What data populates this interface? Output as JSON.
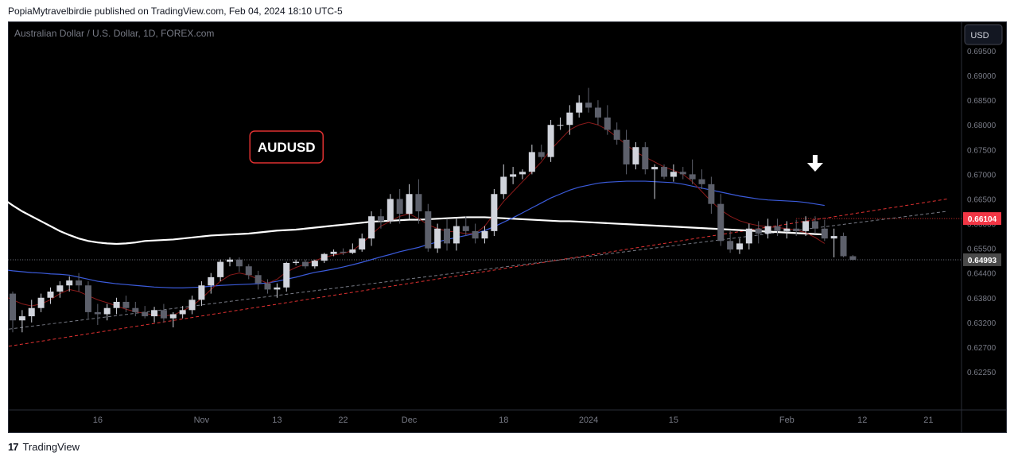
{
  "header": {
    "publisher": "PopiaMytravelbirdie published on TradingView.com, Feb 04, 2024 18:10 UTC-5"
  },
  "footer": {
    "brand": "TradingView",
    "logo_glyph": "17"
  },
  "chart_data": {
    "type": "candlestick",
    "title": "Australian Dollar / U.S. Dollar, 1D, FOREX.com",
    "annotation": "AUDUSD",
    "currency_button": "USD",
    "y_ticks": [
      "0.69500",
      "0.69000",
      "0.68500",
      "0.68000",
      "0.67500",
      "0.67000",
      "0.66500",
      "0.66000",
      "0.65500",
      "0.64400",
      "0.63800",
      "0.63200",
      "0.62700",
      "0.62250"
    ],
    "y_tick_values": [
      0.695,
      0.69,
      0.685,
      0.68,
      0.675,
      0.67,
      0.665,
      0.66,
      0.655,
      0.644,
      0.638,
      0.632,
      0.627,
      0.6225
    ],
    "x_ticks": [
      "16",
      "Nov",
      "13",
      "22",
      "Dec",
      "18",
      "2024",
      "15",
      "Feb",
      "12",
      "21"
    ],
    "x_tick_index": [
      9,
      20,
      28,
      35,
      42,
      52,
      61,
      70,
      82,
      90,
      97
    ],
    "price_labels": [
      {
        "text": "0.66104",
        "value": 0.66104,
        "color": "#f23645"
      },
      {
        "text": "0.64993",
        "value": 0.64993,
        "color": "#4a4a4a"
      }
    ],
    "candles": [
      [
        0.639,
        0.6395,
        0.63,
        0.6325
      ],
      [
        0.6325,
        0.635,
        0.63,
        0.6335
      ],
      [
        0.6335,
        0.6375,
        0.632,
        0.6355
      ],
      [
        0.6355,
        0.639,
        0.6345,
        0.638
      ],
      [
        0.638,
        0.6405,
        0.6365,
        0.6395
      ],
      [
        0.6395,
        0.642,
        0.638,
        0.641
      ],
      [
        0.641,
        0.6432,
        0.6395,
        0.6422
      ],
      [
        0.6422,
        0.644,
        0.6395,
        0.641
      ],
      [
        0.641,
        0.642,
        0.633,
        0.6345
      ],
      [
        0.6345,
        0.6365,
        0.6315,
        0.634
      ],
      [
        0.634,
        0.6365,
        0.6325,
        0.6355
      ],
      [
        0.6355,
        0.638,
        0.634,
        0.637
      ],
      [
        0.637,
        0.6385,
        0.6345,
        0.6355
      ],
      [
        0.6355,
        0.637,
        0.6335,
        0.6345
      ],
      [
        0.6345,
        0.636,
        0.633,
        0.6335
      ],
      [
        0.6335,
        0.6358,
        0.632,
        0.635
      ],
      [
        0.635,
        0.6365,
        0.632,
        0.633
      ],
      [
        0.633,
        0.6345,
        0.631,
        0.634
      ],
      [
        0.634,
        0.636,
        0.633,
        0.635
      ],
      [
        0.635,
        0.6385,
        0.634,
        0.6375
      ],
      [
        0.6375,
        0.642,
        0.636,
        0.641
      ],
      [
        0.641,
        0.644,
        0.639,
        0.643
      ],
      [
        0.643,
        0.65,
        0.642,
        0.649
      ],
      [
        0.649,
        0.651,
        0.647,
        0.65
      ],
      [
        0.65,
        0.651,
        0.6445,
        0.647
      ],
      [
        0.647,
        0.648,
        0.6425,
        0.6435
      ],
      [
        0.6435,
        0.645,
        0.64,
        0.6415
      ],
      [
        0.6415,
        0.6425,
        0.639,
        0.64
      ],
      [
        0.64,
        0.6415,
        0.638,
        0.6405
      ],
      [
        0.6405,
        0.649,
        0.6395,
        0.6485
      ],
      [
        0.6485,
        0.65,
        0.6475,
        0.649
      ],
      [
        0.649,
        0.65,
        0.646,
        0.647
      ],
      [
        0.647,
        0.65,
        0.646,
        0.6495
      ],
      [
        0.6495,
        0.653,
        0.6485,
        0.6525
      ],
      [
        0.6525,
        0.6545,
        0.6515,
        0.6535
      ],
      [
        0.6535,
        0.655,
        0.652,
        0.653
      ],
      [
        0.653,
        0.656,
        0.6525,
        0.6545
      ],
      [
        0.6545,
        0.658,
        0.6535,
        0.657
      ],
      [
        0.657,
        0.6625,
        0.6555,
        0.6615
      ],
      [
        0.6615,
        0.663,
        0.659,
        0.6605
      ],
      [
        0.6605,
        0.666,
        0.66,
        0.665
      ],
      [
        0.665,
        0.667,
        0.66,
        0.662
      ],
      [
        0.662,
        0.668,
        0.661,
        0.666
      ],
      [
        0.666,
        0.669,
        0.66,
        0.6625
      ],
      [
        0.6625,
        0.664,
        0.6535,
        0.655
      ],
      [
        0.655,
        0.66,
        0.653,
        0.659
      ],
      [
        0.659,
        0.661,
        0.654,
        0.656
      ],
      [
        0.656,
        0.661,
        0.654,
        0.6595
      ],
      [
        0.6595,
        0.6615,
        0.6575,
        0.6585
      ],
      [
        0.6585,
        0.66,
        0.656,
        0.657
      ],
      [
        0.657,
        0.6595,
        0.656,
        0.6585
      ],
      [
        0.6585,
        0.667,
        0.6575,
        0.666
      ],
      [
        0.666,
        0.672,
        0.665,
        0.6695
      ],
      [
        0.6695,
        0.6715,
        0.668,
        0.67
      ],
      [
        0.67,
        0.671,
        0.669,
        0.6705
      ],
      [
        0.6705,
        0.676,
        0.67,
        0.6745
      ],
      [
        0.6745,
        0.676,
        0.673,
        0.6735
      ],
      [
        0.6735,
        0.681,
        0.6725,
        0.68
      ],
      [
        0.68,
        0.6815,
        0.679,
        0.68
      ],
      [
        0.68,
        0.684,
        0.678,
        0.6825
      ],
      [
        0.6825,
        0.686,
        0.6815,
        0.6845
      ],
      [
        0.6845,
        0.6875,
        0.6825,
        0.6835
      ],
      [
        0.6835,
        0.685,
        0.68,
        0.6815
      ],
      [
        0.6815,
        0.684,
        0.678,
        0.679
      ],
      [
        0.679,
        0.6805,
        0.676,
        0.677
      ],
      [
        0.677,
        0.679,
        0.67,
        0.672
      ],
      [
        0.672,
        0.6765,
        0.671,
        0.6755
      ],
      [
        0.6755,
        0.6765,
        0.67,
        0.671
      ],
      [
        0.671,
        0.672,
        0.665,
        0.6715
      ],
      [
        0.6715,
        0.672,
        0.669,
        0.6695
      ],
      [
        0.6695,
        0.672,
        0.6685,
        0.6705
      ],
      [
        0.6705,
        0.6715,
        0.669,
        0.67
      ],
      [
        0.67,
        0.673,
        0.668,
        0.669
      ],
      [
        0.669,
        0.671,
        0.667,
        0.668
      ],
      [
        0.668,
        0.6695,
        0.662,
        0.664
      ],
      [
        0.664,
        0.666,
        0.6555,
        0.6565
      ],
      [
        0.6565,
        0.6585,
        0.653,
        0.6545
      ],
      [
        0.6545,
        0.657,
        0.6525,
        0.656
      ],
      [
        0.656,
        0.66,
        0.6545,
        0.659
      ],
      [
        0.659,
        0.6605,
        0.656,
        0.658
      ],
      [
        0.658,
        0.661,
        0.657,
        0.6595
      ],
      [
        0.6595,
        0.661,
        0.6575,
        0.6585
      ],
      [
        0.6585,
        0.6605,
        0.657,
        0.659
      ],
      [
        0.659,
        0.6608,
        0.6575,
        0.6585
      ],
      [
        0.6585,
        0.6615,
        0.6575,
        0.6605
      ],
      [
        0.6605,
        0.6615,
        0.658,
        0.659
      ],
      [
        0.659,
        0.6608,
        0.6565,
        0.657
      ],
      [
        0.657,
        0.659,
        0.651,
        0.6575
      ],
      [
        0.6575,
        0.6582,
        0.651,
        0.6515
      ],
      [
        0.6515,
        0.652,
        0.6495,
        0.6499
      ]
    ],
    "series": [
      {
        "name": "",
        "color": "#ffffff",
        "width": 2.2,
        "values": [
          0.665,
          0.6637,
          0.6625,
          0.6615,
          0.6605,
          0.6595,
          0.6585,
          0.6577,
          0.657,
          0.6565,
          0.6562,
          0.656,
          0.6559,
          0.656,
          0.6562,
          0.6565,
          0.6566,
          0.6567,
          0.6568,
          0.657,
          0.6572,
          0.6574,
          0.6576,
          0.6577,
          0.6578,
          0.6579,
          0.658,
          0.6582,
          0.6584,
          0.6586,
          0.6587,
          0.6588,
          0.659,
          0.6592,
          0.6594,
          0.6596,
          0.6598,
          0.66,
          0.6602,
          0.6604,
          0.6605,
          0.6606,
          0.6607,
          0.6608,
          0.6608,
          0.6609,
          0.661,
          0.6611,
          0.6612,
          0.6613,
          0.6613,
          0.6613,
          0.6612,
          0.6611,
          0.661,
          0.6609,
          0.6608,
          0.6607,
          0.6606,
          0.6605,
          0.6605,
          0.6604,
          0.6603,
          0.6602,
          0.6601,
          0.66,
          0.6599,
          0.6598,
          0.6597,
          0.6596,
          0.6595,
          0.6594,
          0.6593,
          0.6592,
          0.6591,
          0.659,
          0.6589,
          0.6588,
          0.6587,
          0.6586,
          0.6585,
          0.6584,
          0.6583,
          0.6582,
          0.6581,
          0.658,
          0.6579,
          0.6578
        ]
      },
      {
        "name": "",
        "color": "#3b5bdb",
        "width": 1.2,
        "values": [
          0.6455,
          0.645,
          0.6446,
          0.6442,
          0.644,
          0.6438,
          0.6437,
          0.6435,
          0.643,
          0.6425,
          0.642,
          0.6417,
          0.6414,
          0.6412,
          0.641,
          0.6408,
          0.6406,
          0.6405,
          0.6404,
          0.6404,
          0.6405,
          0.6406,
          0.6408,
          0.641,
          0.6411,
          0.6412,
          0.6413,
          0.6414,
          0.6416,
          0.642,
          0.6425,
          0.643,
          0.6436,
          0.6443,
          0.645,
          0.6458,
          0.6467,
          0.6477,
          0.6488,
          0.65,
          0.6512,
          0.6523,
          0.6535,
          0.6545,
          0.6552,
          0.6558,
          0.6563,
          0.6568,
          0.6572,
          0.6576,
          0.658,
          0.6586,
          0.6594,
          0.6603,
          0.6612,
          0.6622,
          0.6632,
          0.6642,
          0.6652,
          0.666,
          0.6668,
          0.6674,
          0.6678,
          0.6682,
          0.6684,
          0.6685,
          0.6686,
          0.6686,
          0.6686,
          0.6685,
          0.6684,
          0.6683,
          0.668,
          0.6676,
          0.6672,
          0.6668,
          0.6664,
          0.666,
          0.6656,
          0.6653,
          0.665,
          0.6648,
          0.6647,
          0.6646,
          0.6645,
          0.6643,
          0.664,
          0.6637
        ]
      },
      {
        "name": "",
        "color": "#8b1a1a",
        "width": 1.0,
        "values": [
          0.6385,
          0.6375,
          0.6365,
          0.636,
          0.6365,
          0.6375,
          0.639,
          0.64,
          0.6395,
          0.6385,
          0.6375,
          0.6368,
          0.636,
          0.6352,
          0.6346,
          0.6342,
          0.6338,
          0.6336,
          0.6338,
          0.6348,
          0.636,
          0.6378,
          0.64,
          0.642,
          0.6435,
          0.644,
          0.6435,
          0.6425,
          0.6415,
          0.6425,
          0.6445,
          0.6465,
          0.648,
          0.6495,
          0.651,
          0.652,
          0.6528,
          0.654,
          0.656,
          0.6578,
          0.6595,
          0.6605,
          0.6615,
          0.662,
          0.661,
          0.6598,
          0.659,
          0.6585,
          0.6583,
          0.658,
          0.658,
          0.6595,
          0.662,
          0.6645,
          0.6665,
          0.6685,
          0.6705,
          0.6725,
          0.675,
          0.677,
          0.679,
          0.68,
          0.6805,
          0.68,
          0.679,
          0.6775,
          0.676,
          0.6745,
          0.6735,
          0.6725,
          0.6715,
          0.6708,
          0.67,
          0.6685,
          0.6665,
          0.6645,
          0.6628,
          0.6615,
          0.6606,
          0.66,
          0.6596,
          0.6594,
          0.6592,
          0.659,
          0.6587,
          0.6582,
          0.6572,
          0.656
        ]
      }
    ],
    "trendlines": [
      {
        "color": "#e03131",
        "dash": "4,3",
        "points": [
          [
            -1,
            0.627
          ],
          [
            99,
            0.665
          ]
        ]
      },
      {
        "color": "#787b86",
        "dash": "4,3",
        "points": [
          [
            -1,
            0.6305
          ],
          [
            99,
            0.6625
          ]
        ]
      },
      {
        "color": "#e03131",
        "dash": "1,2",
        "points": [
          [
            83,
            0.66104
          ],
          [
            102,
            0.66104
          ]
        ]
      },
      {
        "color": "#787b86",
        "dash": "1,2",
        "points": [
          [
            -1,
            0.64993
          ],
          [
            102,
            0.64993
          ]
        ]
      }
    ],
    "arrow_index": 85,
    "annotation_index": 29
  }
}
